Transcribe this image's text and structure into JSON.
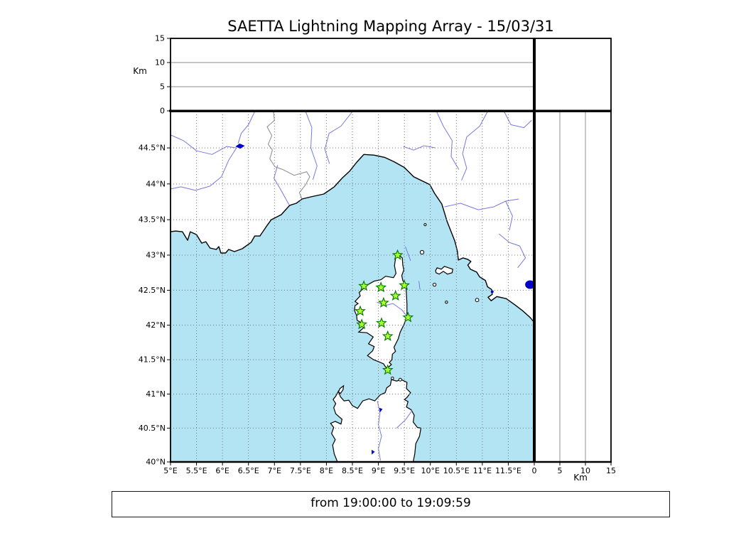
{
  "footer": {
    "text": "from 19:00:00 to 19:09:59"
  },
  "chart_data": {
    "type": "scatter",
    "title": "SAETTA Lightning Mapping Array - 15/03/31",
    "map_panel": {
      "lon_range_deg_e": [
        5,
        12
      ],
      "lat_range_deg_n": [
        40,
        45
      ],
      "graticule_step_deg": 0.5,
      "lon_ticks": [
        {
          "value": 5,
          "label": "5°E"
        },
        {
          "value": 5.5,
          "label": "5.5°E"
        },
        {
          "value": 6,
          "label": "6°E"
        },
        {
          "value": 6.5,
          "label": "6.5°E"
        },
        {
          "value": 7,
          "label": "7°E"
        },
        {
          "value": 7.5,
          "label": "7.5°E"
        },
        {
          "value": 8,
          "label": "8°E"
        },
        {
          "value": 8.5,
          "label": "8.5°E"
        },
        {
          "value": 9,
          "label": "9°E"
        },
        {
          "value": 9.5,
          "label": "9.5°E"
        },
        {
          "value": 10,
          "label": "10°E"
        },
        {
          "value": 10.5,
          "label": "10.5°E"
        },
        {
          "value": 11,
          "label": "11°E"
        },
        {
          "value": 11.5,
          "label": "11.5°E"
        }
      ],
      "lat_ticks": [
        {
          "value": 40,
          "label": "40°N"
        },
        {
          "value": 40.5,
          "label": "40.5°N"
        },
        {
          "value": 41,
          "label": "41°N"
        },
        {
          "value": 41.5,
          "label": "41.5°N"
        },
        {
          "value": 42,
          "label": "42°N"
        },
        {
          "value": 42.5,
          "label": "42.5°N"
        },
        {
          "value": 43,
          "label": "43°N"
        },
        {
          "value": 43.5,
          "label": "43.5°N"
        },
        {
          "value": 44,
          "label": "44°N"
        },
        {
          "value": 44.5,
          "label": "44.5°N"
        }
      ],
      "stations": [
        {
          "lon": 9.37,
          "lat": 43.0
        },
        {
          "lon": 8.72,
          "lat": 42.56
        },
        {
          "lon": 9.05,
          "lat": 42.54
        },
        {
          "lon": 9.5,
          "lat": 42.57
        },
        {
          "lon": 9.33,
          "lat": 42.42
        },
        {
          "lon": 9.1,
          "lat": 42.32
        },
        {
          "lon": 8.65,
          "lat": 42.2
        },
        {
          "lon": 9.57,
          "lat": 42.11
        },
        {
          "lon": 9.06,
          "lat": 42.03
        },
        {
          "lon": 8.68,
          "lat": 42.01
        },
        {
          "lon": 9.18,
          "lat": 41.84
        },
        {
          "lon": 9.18,
          "lat": 41.35
        }
      ],
      "lake_marker": {
        "lon": 11.92,
        "lat": 42.58
      }
    },
    "top_panel": {
      "ylabel": "Km",
      "ylim": [
        0,
        15
      ],
      "yticks": [
        {
          "value": 0,
          "label": "0"
        },
        {
          "value": 5,
          "label": "5"
        },
        {
          "value": 10,
          "label": "10"
        },
        {
          "value": 15,
          "label": "15"
        }
      ],
      "gridlines_km": [
        5,
        10
      ],
      "points": []
    },
    "right_panel": {
      "xlabel": "Km",
      "xlim": [
        0,
        15
      ],
      "xticks": [
        {
          "value": 0,
          "label": "0"
        },
        {
          "value": 5,
          "label": "5"
        },
        {
          "value": 10,
          "label": "10"
        },
        {
          "value": 15,
          "label": "15"
        }
      ],
      "gridlines_km": [
        5,
        10
      ],
      "points": []
    }
  },
  "colors": {
    "background": "#ffffff",
    "sea": "#b2e4f4",
    "land": "#ffffff",
    "coastline": "#000000",
    "river": "#7878dc",
    "political_border": "#8a8a8a",
    "graticule": "#777777",
    "panel_gridline": "#8c8c8c",
    "station_fill": "#adff2f",
    "station_edge": "#007700",
    "lake_fill": "#0000cc",
    "text": "#000000"
  }
}
